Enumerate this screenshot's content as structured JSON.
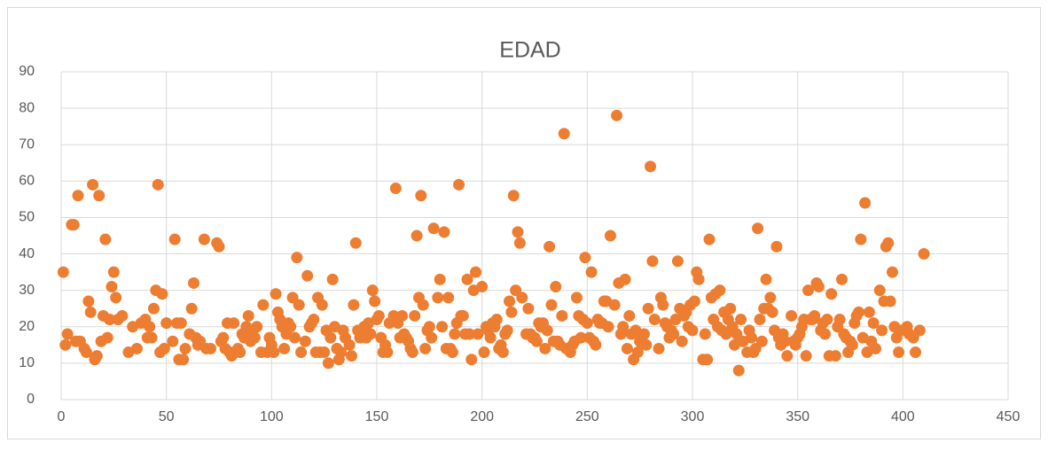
{
  "chart_data": {
    "type": "scatter",
    "title": "EDAD",
    "color": "#ED7D31",
    "grid": true,
    "xlim": [
      0,
      450
    ],
    "xticks": [
      0,
      50,
      100,
      150,
      200,
      250,
      300,
      350,
      400,
      450
    ],
    "ylim": [
      0,
      90
    ],
    "yticks": [
      0,
      10,
      20,
      30,
      40,
      50,
      60,
      70,
      80,
      90
    ],
    "x": [
      1,
      2,
      3,
      5,
      6,
      7,
      8,
      9,
      11,
      12,
      13,
      14,
      15,
      16,
      17,
      18,
      19,
      20,
      21,
      22,
      23,
      24,
      25,
      26,
      27,
      29,
      32,
      34,
      36,
      38,
      40,
      41,
      42,
      43,
      44,
      45,
      46,
      47,
      48,
      49,
      50,
      53,
      54,
      55,
      56,
      57,
      58,
      59,
      61,
      62,
      63,
      64,
      65,
      66,
      68,
      69,
      71,
      74,
      75,
      76,
      77,
      78,
      79,
      80,
      81,
      82,
      84,
      85,
      86,
      87,
      88,
      89,
      90,
      91,
      92,
      93,
      95,
      96,
      98,
      99,
      100,
      101,
      102,
      103,
      104,
      105,
      106,
      107,
      108,
      109,
      110,
      111,
      112,
      113,
      114,
      116,
      117,
      118,
      119,
      120,
      121,
      122,
      123,
      124,
      125,
      126,
      127,
      128,
      129,
      130,
      131,
      132,
      133,
      134,
      135,
      137,
      138,
      139,
      140,
      141,
      142,
      143,
      144,
      145,
      146,
      147,
      148,
      149,
      150,
      151,
      152,
      153,
      154,
      155,
      156,
      158,
      159,
      160,
      161,
      162,
      163,
      164,
      165,
      166,
      167,
      168,
      169,
      170,
      171,
      172,
      173,
      174,
      175,
      176,
      177,
      179,
      180,
      181,
      182,
      183,
      184,
      185,
      186,
      187,
      188,
      189,
      190,
      191,
      192,
      193,
      194,
      195,
      196,
      197,
      198,
      200,
      201,
      202,
      203,
      204,
      205,
      206,
      207,
      208,
      209,
      210,
      211,
      212,
      213,
      214,
      215,
      216,
      217,
      218,
      219,
      221,
      222,
      223,
      224,
      225,
      226,
      227,
      228,
      229,
      230,
      231,
      232,
      233,
      234,
      235,
      236,
      237,
      238,
      239,
      240,
      242,
      243,
      244,
      245,
      246,
      247,
      248,
      249,
      250,
      251,
      252,
      253,
      254,
      255,
      256,
      257,
      258,
      259,
      260,
      261,
      263,
      264,
      265,
      266,
      267,
      268,
      269,
      270,
      271,
      272,
      273,
      274,
      275,
      276,
      277,
      278,
      279,
      280,
      281,
      282,
      284,
      285,
      286,
      287,
      288,
      289,
      290,
      291,
      292,
      293,
      294,
      295,
      296,
      297,
      298,
      299,
      300,
      301,
      302,
      303,
      305,
      306,
      307,
      308,
      309,
      310,
      311,
      312,
      313,
      314,
      315,
      316,
      317,
      318,
      319,
      320,
      321,
      322,
      323,
      324,
      326,
      327,
      328,
      329,
      330,
      331,
      332,
      333,
      334,
      335,
      336,
      337,
      338,
      339,
      340,
      341,
      342,
      343,
      344,
      345,
      347,
      348,
      349,
      350,
      351,
      352,
      353,
      354,
      355,
      356,
      357,
      358,
      359,
      360,
      361,
      362,
      363,
      364,
      365,
      366,
      368,
      369,
      370,
      371,
      372,
      373,
      374,
      375,
      376,
      377,
      378,
      379,
      380,
      381,
      382,
      383,
      384,
      385,
      386,
      387,
      389,
      390,
      391,
      392,
      393,
      394,
      395,
      396,
      397,
      398,
      399,
      402,
      403,
      405,
      406,
      408,
      410
    ],
    "y": [
      35,
      15,
      18,
      48,
      48,
      16,
      56,
      16,
      14,
      13,
      27,
      24,
      59,
      11,
      12,
      56,
      16,
      23,
      44,
      17,
      22,
      31,
      35,
      28,
      22,
      23,
      13,
      20,
      14,
      21,
      22,
      17,
      20,
      17,
      25,
      30,
      59,
      13,
      29,
      14,
      21,
      16,
      44,
      21,
      11,
      21,
      11,
      14,
      18,
      25,
      32,
      17,
      15,
      16,
      44,
      14,
      14,
      43,
      42,
      16,
      17,
      14,
      21,
      13,
      12,
      21,
      14,
      13,
      18,
      17,
      20,
      23,
      16,
      18,
      17,
      20,
      13,
      26,
      13,
      17,
      15,
      13,
      29,
      24,
      22,
      20,
      14,
      18,
      21,
      20,
      28,
      17,
      39,
      26,
      13,
      16,
      34,
      20,
      21,
      22,
      13,
      28,
      13,
      26,
      13,
      19,
      10,
      17,
      33,
      20,
      14,
      11,
      13,
      19,
      17,
      15,
      12,
      26,
      43,
      19,
      17,
      18,
      20,
      17,
      21,
      18,
      30,
      27,
      22,
      23,
      17,
      13,
      15,
      13,
      21,
      23,
      58,
      21,
      17,
      23,
      18,
      17,
      16,
      14,
      13,
      23,
      45,
      28,
      56,
      26,
      14,
      19,
      20,
      17,
      47,
      28,
      33,
      20,
      46,
      14,
      28,
      14,
      13,
      18,
      21,
      59,
      23,
      23,
      18,
      33,
      18,
      11,
      30,
      35,
      18,
      31,
      13,
      20,
      19,
      17,
      21,
      20,
      22,
      14,
      15,
      13,
      18,
      19,
      27,
      24,
      56,
      30,
      46,
      43,
      28,
      18,
      25,
      18,
      17,
      17,
      16,
      21,
      20,
      21,
      14,
      19,
      42,
      26,
      16,
      31,
      16,
      15,
      23,
      73,
      14,
      13,
      15,
      16,
      28,
      23,
      17,
      22,
      39,
      21,
      17,
      35,
      16,
      15,
      22,
      21,
      21,
      27,
      27,
      20,
      45,
      26,
      78,
      32,
      18,
      20,
      33,
      14,
      23,
      18,
      11,
      19,
      13,
      16,
      17,
      18,
      15,
      25,
      64,
      38,
      22,
      14,
      28,
      26,
      21,
      20,
      17,
      19,
      18,
      22,
      38,
      25,
      16,
      23,
      24,
      20,
      26,
      19,
      27,
      35,
      33,
      11,
      18,
      11,
      44,
      28,
      22,
      29,
      20,
      30,
      19,
      24,
      18,
      22,
      25,
      20,
      15,
      18,
      8,
      22,
      16,
      13,
      19,
      17,
      13,
      14,
      47,
      22,
      16,
      25,
      33,
      25,
      28,
      24,
      19,
      42,
      17,
      15,
      18,
      16,
      12,
      23,
      16,
      15,
      17,
      18,
      20,
      22,
      12,
      30,
      22,
      22,
      23,
      32,
      31,
      19,
      21,
      18,
      22,
      12,
      29,
      12,
      20,
      22,
      33,
      18,
      17,
      13,
      16,
      15,
      21,
      23,
      24,
      44,
      17,
      54,
      13,
      24,
      16,
      21,
      14,
      30,
      19,
      27,
      42,
      43,
      27,
      35,
      20,
      17,
      13,
      19,
      20,
      18,
      17,
      13,
      19,
      40
    ]
  }
}
